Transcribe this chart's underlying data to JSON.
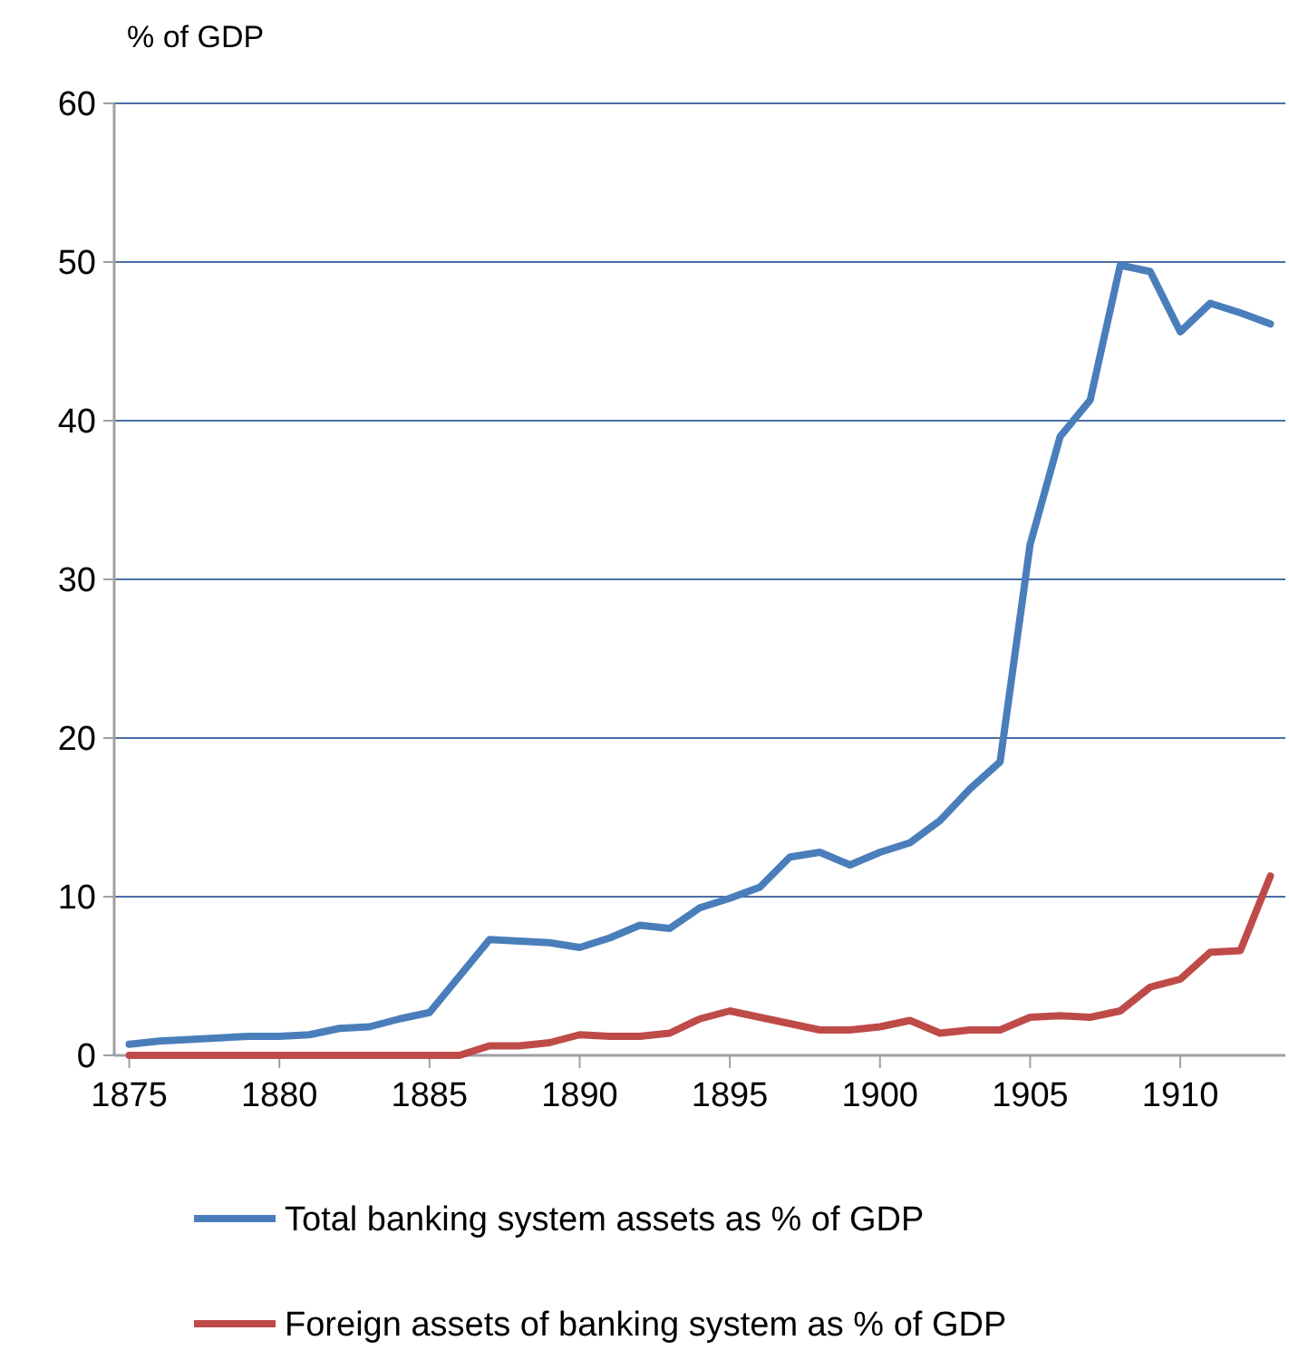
{
  "chart_data": {
    "type": "line",
    "ylabel": "% of GDP",
    "x": [
      1875,
      1876,
      1877,
      1878,
      1879,
      1880,
      1881,
      1882,
      1883,
      1884,
      1885,
      1886,
      1887,
      1888,
      1889,
      1890,
      1891,
      1892,
      1893,
      1894,
      1895,
      1896,
      1897,
      1898,
      1899,
      1900,
      1901,
      1902,
      1903,
      1904,
      1905,
      1906,
      1907,
      1908,
      1909,
      1910,
      1911,
      1912,
      1913
    ],
    "series": [
      {
        "name": "Total banking system assets as % of GDP",
        "color": "#4a7ebb",
        "values": [
          0.7,
          0.9,
          1.0,
          1.1,
          1.2,
          1.2,
          1.3,
          1.7,
          1.8,
          2.3,
          2.7,
          5.0,
          7.3,
          7.2,
          7.1,
          6.8,
          7.4,
          8.2,
          8.0,
          9.3,
          9.9,
          10.6,
          12.5,
          12.8,
          12.0,
          12.8,
          13.4,
          14.8,
          16.8,
          18.5,
          32.2,
          39.0,
          41.3,
          49.8,
          49.4,
          45.6,
          47.4,
          46.8,
          46.1
        ]
      },
      {
        "name": "Foreign assets of banking system as % of GDP",
        "color": "#be4b48",
        "values": [
          0,
          0,
          0,
          0,
          0,
          0,
          0,
          0,
          0,
          0,
          0,
          0,
          0.6,
          0.6,
          0.8,
          1.3,
          1.2,
          1.2,
          1.4,
          2.3,
          2.8,
          2.4,
          2.0,
          1.6,
          1.6,
          1.8,
          2.2,
          1.4,
          1.6,
          1.6,
          2.4,
          2.5,
          2.4,
          2.8,
          4.3,
          4.8,
          6.5,
          6.6,
          11.3
        ]
      }
    ],
    "xlim": [
      1874.5,
      1913.5
    ],
    "xticks": [
      1875,
      1880,
      1885,
      1890,
      1895,
      1900,
      1905,
      1910
    ],
    "ylim": [
      0,
      60
    ],
    "yticks": [
      0,
      10,
      20,
      30,
      40,
      50,
      60
    ],
    "grid": "y",
    "legend": "bottom",
    "marker": "none",
    "line_style": "solid"
  }
}
